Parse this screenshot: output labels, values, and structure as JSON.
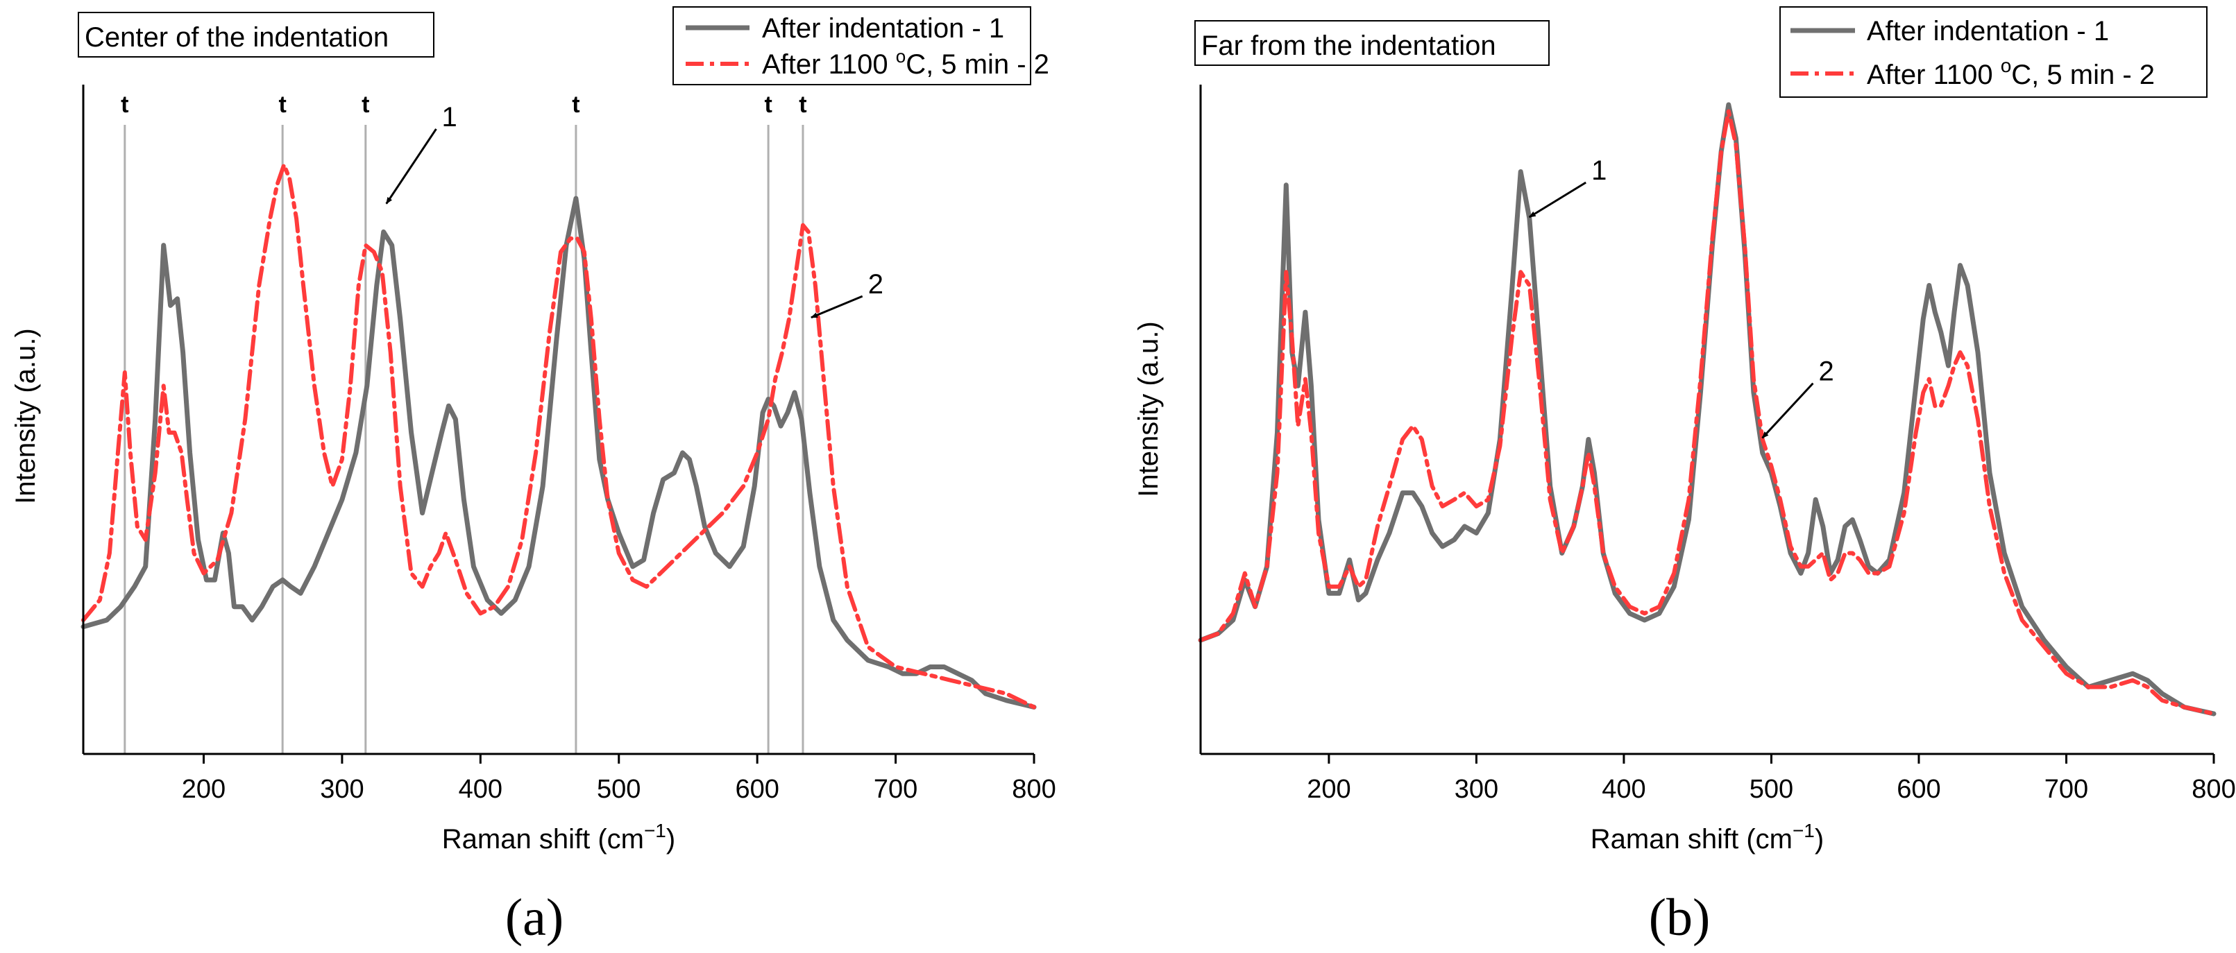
{
  "chart_data": [
    {
      "type": "line",
      "panel_label": "(a)",
      "title": "Center of the indentation",
      "xlabel": "Raman shift (cm",
      "xlabel_sup": "−1",
      "xlabel_end": ")",
      "ylabel": "Intensity (a.u.)",
      "xlim": [
        113,
        800
      ],
      "ylim": [
        0,
        100
      ],
      "x_ticks": [
        200,
        300,
        400,
        500,
        600,
        700,
        800
      ],
      "tick_labels": [
        "200",
        "300",
        "400",
        "500",
        "600",
        "700",
        "800"
      ],
      "legend_position": "top-right",
      "legend": [
        {
          "label": "After indentation - 1",
          "style": "solid",
          "color": "#707070"
        },
        {
          "label_pre": "After 1100 ",
          "label_sup": "o",
          "label_post": "C, 5 min - 2",
          "style": "dash-dot",
          "color": "#ff3b3b"
        }
      ],
      "reference_lines": [
        {
          "x": 143,
          "label": "t"
        },
        {
          "x": 257,
          "label": "t"
        },
        {
          "x": 317,
          "label": "t"
        },
        {
          "x": 469,
          "label": "t"
        },
        {
          "x": 608,
          "label": "t"
        },
        {
          "x": 633,
          "label": "t"
        }
      ],
      "annotations": [
        {
          "text": "1",
          "x": 330,
          "y": 82,
          "label_x": 372,
          "label_y": 94
        },
        {
          "text": "2",
          "x": 637,
          "y": 65,
          "label_x": 680,
          "label_y": 69
        }
      ],
      "series": [
        {
          "name": "After indentation - 1",
          "x": [
            113,
            130,
            140,
            150,
            158,
            165,
            171,
            176,
            181,
            185,
            190,
            196,
            202,
            208,
            214,
            218,
            222,
            228,
            235,
            242,
            250,
            257,
            263,
            270,
            280,
            290,
            300,
            310,
            318,
            325,
            330,
            336,
            342,
            350,
            358,
            365,
            372,
            377,
            382,
            388,
            395,
            405,
            415,
            425,
            435,
            445,
            455,
            462,
            469,
            475,
            480,
            486,
            492,
            500,
            510,
            518,
            525,
            532,
            540,
            546,
            551,
            556,
            562,
            570,
            580,
            590,
            598,
            604,
            608,
            612,
            617,
            622,
            627,
            632,
            638,
            645,
            655,
            665,
            680,
            695,
            705,
            715,
            725,
            735,
            745,
            755,
            765,
            780,
            800
          ],
          "y": [
            19,
            20,
            22,
            25,
            28,
            50,
            76,
            67,
            68,
            60,
            45,
            32,
            26,
            26,
            33,
            30,
            22,
            22,
            20,
            22,
            25,
            26,
            25,
            24,
            28,
            33,
            38,
            45,
            55,
            70,
            78,
            76,
            65,
            48,
            36,
            42,
            48,
            52,
            50,
            38,
            28,
            23,
            21,
            23,
            28,
            40,
            62,
            76,
            83,
            74,
            60,
            44,
            38,
            33,
            28,
            29,
            36,
            41,
            42,
            45,
            44,
            40,
            34,
            30,
            28,
            31,
            40,
            51,
            53,
            52,
            49,
            51,
            54,
            50,
            39,
            28,
            20,
            17,
            14,
            13,
            12,
            12,
            13,
            13,
            12,
            11,
            9,
            8,
            7
          ]
        },
        {
          "name": "After 1100 °C, 5 min - 2",
          "x": [
            113,
            125,
            132,
            138,
            143,
            147,
            152,
            158,
            165,
            171,
            175,
            179,
            184,
            188,
            193,
            200,
            210,
            220,
            230,
            240,
            248,
            253,
            258,
            262,
            267,
            272,
            280,
            287,
            293,
            300,
            306,
            312,
            317,
            323,
            329,
            335,
            342,
            350,
            358,
            364,
            370,
            375,
            382,
            390,
            400,
            410,
            420,
            430,
            440,
            450,
            458,
            465,
            470,
            475,
            480,
            486,
            492,
            500,
            510,
            520,
            530,
            545,
            560,
            575,
            590,
            600,
            608,
            613,
            618,
            623,
            628,
            633,
            637,
            642,
            648,
            655,
            665,
            680,
            700,
            720,
            740,
            760,
            780,
            800
          ],
          "y": [
            20,
            23,
            30,
            45,
            57,
            45,
            34,
            32,
            42,
            55,
            48,
            48,
            45,
            38,
            30,
            27,
            29,
            36,
            50,
            70,
            80,
            85,
            88,
            86,
            80,
            70,
            55,
            45,
            40,
            44,
            55,
            70,
            76,
            75,
            72,
            60,
            40,
            27,
            25,
            28,
            30,
            33,
            29,
            24,
            21,
            22,
            25,
            32,
            45,
            63,
            75,
            77,
            77,
            75,
            65,
            50,
            38,
            30,
            26,
            25,
            27,
            30,
            33,
            36,
            40,
            45,
            50,
            56,
            60,
            65,
            72,
            79,
            78,
            70,
            56,
            40,
            25,
            16,
            13,
            12,
            11,
            10,
            9,
            7
          ]
        }
      ]
    },
    {
      "type": "line",
      "panel_label": "(b)",
      "title": "Far from the indentation",
      "xlabel": "Raman shift (cm",
      "xlabel_sup": "−1",
      "xlabel_end": ")",
      "ylabel": "Intensity (a.u.)",
      "xlim": [
        113,
        800
      ],
      "ylim": [
        0,
        100
      ],
      "x_ticks": [
        200,
        300,
        400,
        500,
        600,
        700,
        800
      ],
      "tick_labels": [
        "200",
        "300",
        "400",
        "500",
        "600",
        "700",
        "800"
      ],
      "legend_position": "top-right",
      "legend": [
        {
          "label": "After indentation - 1",
          "style": "solid",
          "color": "#707070"
        },
        {
          "label_pre": "After 1100 ",
          "label_sup": "o",
          "label_post": "C, 5 min - 2",
          "style": "dash-dot",
          "color": "#ff3b3b"
        }
      ],
      "reference_lines": [],
      "annotations": [
        {
          "text": "1",
          "x": 334,
          "y": 80,
          "label_x": 378,
          "label_y": 86
        },
        {
          "text": "2",
          "x": 492,
          "y": 47,
          "label_x": 532,
          "label_y": 56
        }
      ],
      "series": [
        {
          "name": "After indentation - 1",
          "x": [
            113,
            125,
            135,
            143,
            150,
            158,
            165,
            171,
            175,
            179,
            184,
            188,
            193,
            200,
            207,
            214,
            220,
            225,
            233,
            241,
            250,
            257,
            263,
            270,
            277,
            285,
            292,
            300,
            308,
            316,
            324,
            330,
            336,
            343,
            350,
            358,
            366,
            372,
            376,
            380,
            386,
            394,
            404,
            414,
            424,
            434,
            444,
            452,
            460,
            466,
            471,
            476,
            482,
            488,
            494,
            500,
            506,
            513,
            520,
            525,
            530,
            535,
            540,
            545,
            550,
            555,
            560,
            566,
            572,
            580,
            590,
            598,
            603,
            607,
            611,
            615,
            620,
            624,
            628,
            633,
            640,
            648,
            658,
            670,
            685,
            700,
            715,
            730,
            745,
            755,
            765,
            780,
            800
          ],
          "y": [
            17,
            18,
            20,
            26,
            22,
            28,
            48,
            85,
            60,
            55,
            66,
            55,
            35,
            24,
            24,
            29,
            23,
            24,
            29,
            33,
            39,
            39,
            37,
            33,
            31,
            32,
            34,
            33,
            36,
            47,
            69,
            87,
            80,
            60,
            40,
            30,
            34,
            40,
            47,
            42,
            30,
            24,
            21,
            20,
            21,
            25,
            35,
            54,
            76,
            90,
            97,
            92,
            75,
            54,
            45,
            42,
            37,
            30,
            27,
            30,
            38,
            34,
            27,
            29,
            34,
            35,
            32,
            28,
            27,
            29,
            39,
            55,
            65,
            70,
            66,
            63,
            58,
            66,
            73,
            70,
            60,
            42,
            30,
            22,
            17,
            13,
            10,
            11,
            12,
            11,
            9,
            7,
            6
          ]
        },
        {
          "name": "After 1100 °C, 5 min - 2",
          "x": [
            113,
            125,
            135,
            143,
            150,
            158,
            165,
            171,
            175,
            179,
            184,
            188,
            193,
            200,
            207,
            214,
            220,
            225,
            233,
            241,
            250,
            257,
            263,
            270,
            277,
            285,
            292,
            300,
            308,
            316,
            324,
            330,
            336,
            343,
            350,
            358,
            366,
            372,
            376,
            380,
            386,
            394,
            404,
            414,
            424,
            434,
            444,
            452,
            460,
            466,
            471,
            476,
            482,
            488,
            494,
            500,
            506,
            513,
            520,
            525,
            530,
            535,
            540,
            545,
            550,
            555,
            560,
            566,
            572,
            580,
            590,
            598,
            603,
            607,
            611,
            615,
            620,
            624,
            628,
            633,
            640,
            648,
            658,
            670,
            685,
            700,
            715,
            730,
            745,
            755,
            765,
            780,
            800
          ],
          "y": [
            17,
            18,
            21,
            27,
            22,
            28,
            42,
            72,
            62,
            49,
            56,
            48,
            33,
            25,
            25,
            28,
            25,
            26,
            34,
            40,
            47,
            49,
            47,
            40,
            37,
            38,
            39,
            37,
            38,
            46,
            62,
            72,
            70,
            55,
            38,
            30,
            34,
            40,
            45,
            40,
            30,
            25,
            22,
            21,
            22,
            27,
            38,
            56,
            77,
            90,
            96,
            91,
            76,
            56,
            47,
            43,
            38,
            31,
            28,
            28,
            29,
            30,
            26,
            27,
            30,
            30,
            29,
            27,
            27,
            28,
            36,
            48,
            54,
            56,
            52,
            52,
            55,
            58,
            60,
            58,
            50,
            37,
            27,
            20,
            16,
            12,
            10,
            10,
            11,
            10,
            8,
            7,
            6
          ]
        }
      ]
    }
  ]
}
